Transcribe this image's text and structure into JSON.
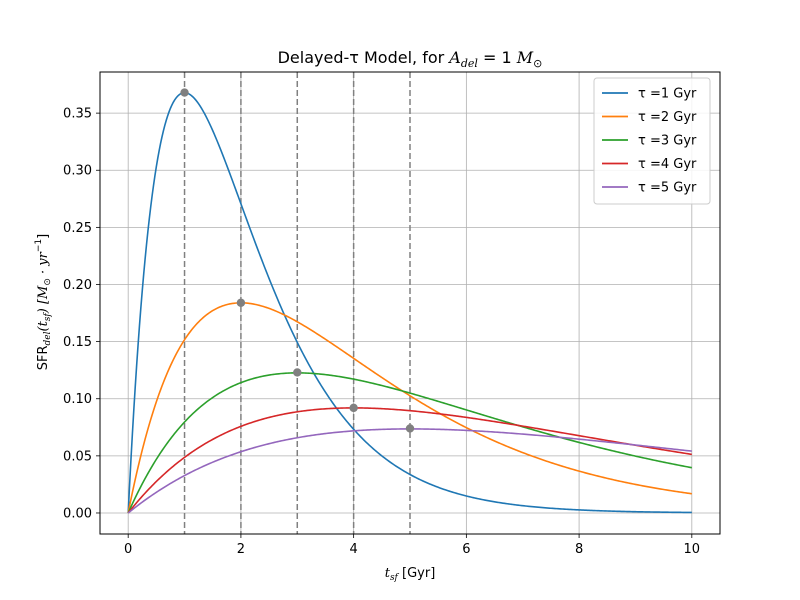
{
  "chart_data": {
    "type": "line",
    "title_text": "Delayed-τ Model, for ",
    "title_sym": "A",
    "title_sub": "del",
    "title_eq": " = 1 ",
    "title_unit": "M",
    "title_unit_sub": "⊙",
    "xlabel_sym": "t",
    "xlabel_sub": "sf",
    "xlabel_unit": " [Gyr]",
    "ylabel_text": "SFR",
    "ylabel_sub": "del",
    "ylabel_arg": "(t",
    "ylabel_arg_sub": "sf",
    "ylabel_unit": ") [M",
    "ylabel_unit_sub": "⊙",
    "ylabel_unit_mid": " · yr",
    "ylabel_unit_sup": "−1",
    "ylabel_unit_end": "]",
    "xlim": [
      -0.5,
      10.5
    ],
    "ylim": [
      -0.0184,
      0.386
    ],
    "xticks": [
      0,
      2,
      4,
      6,
      8,
      10
    ],
    "yticks": [
      0.0,
      0.05,
      0.1,
      0.15,
      0.2,
      0.25,
      0.3,
      0.35
    ],
    "ytick_labels": [
      "0.00",
      "0.05",
      "0.10",
      "0.15",
      "0.20",
      "0.25",
      "0.30",
      "0.35"
    ],
    "grid": true,
    "legend_position": "top-right",
    "series": [
      {
        "name": "τ =1 Gyr",
        "tau": 1,
        "color": "#1f77b4"
      },
      {
        "name": "τ =2 Gyr",
        "tau": 2,
        "color": "#ff7f0e"
      },
      {
        "name": "τ =3 Gyr",
        "tau": 3,
        "color": "#2ca02c"
      },
      {
        "name": "τ =4 Gyr",
        "tau": 4,
        "color": "#d62728"
      },
      {
        "name": "τ =5 Gyr",
        "tau": 5,
        "color": "#9467bd"
      }
    ],
    "peak_markers": [
      {
        "x": 1,
        "y": 0.368
      },
      {
        "x": 2,
        "y": 0.184
      },
      {
        "x": 3,
        "y": 0.123
      },
      {
        "x": 4,
        "y": 0.092
      },
      {
        "x": 5,
        "y": 0.074
      }
    ],
    "vlines": [
      1,
      2,
      3,
      4,
      5
    ],
    "marker_color": "#808080",
    "vline_color": "#808080"
  }
}
